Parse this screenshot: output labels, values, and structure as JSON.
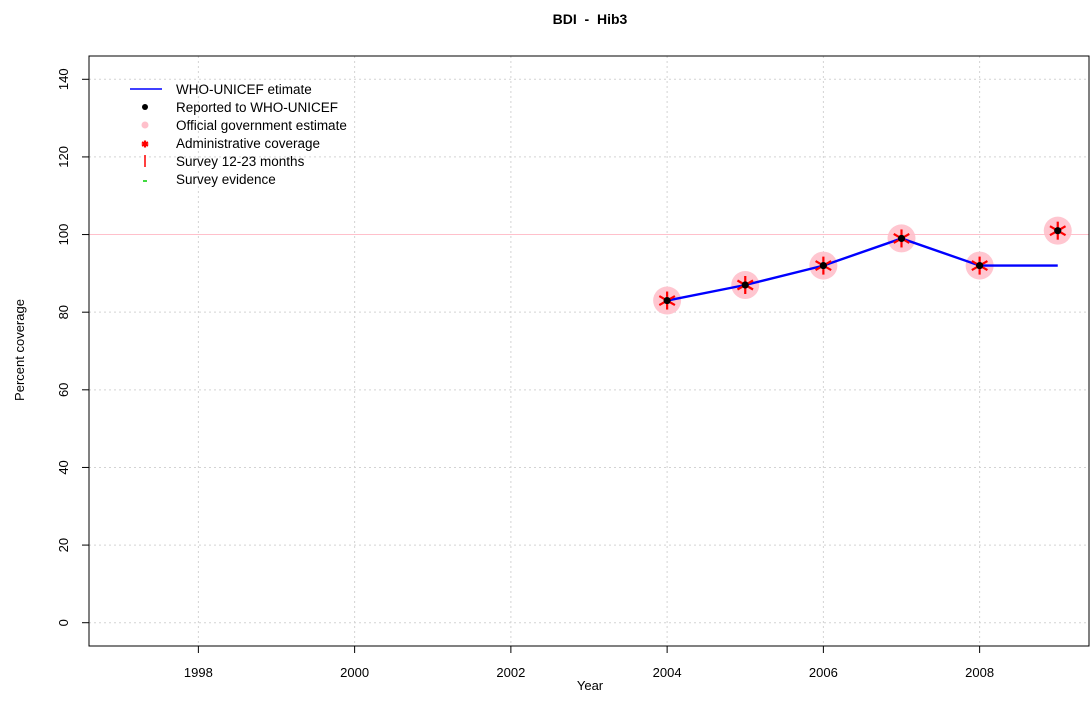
{
  "chart_data": {
    "type": "line",
    "title": "BDI  -  Hib3",
    "xlabel": "Year",
    "ylabel": "Percent coverage",
    "xlim": [
      1996.6,
      2009.4
    ],
    "ylim": [
      -6,
      146
    ],
    "x_ticks": [
      1998,
      2000,
      2002,
      2004,
      2006,
      2008
    ],
    "x_tick_labels": [
      "1998",
      "2000",
      "2002",
      "2004",
      "2006",
      "2008"
    ],
    "y_ticks": [
      0,
      20,
      40,
      60,
      80,
      100,
      120,
      140
    ],
    "y_tick_labels": [
      "0",
      "20",
      "40",
      "60",
      "80",
      "100",
      "120",
      "140"
    ],
    "grid": true,
    "reference_line": {
      "y": 100,
      "color": "#ffc0cb"
    },
    "legend": {
      "position": "top-left",
      "entries": [
        {
          "label": "WHO-UNICEF etimate",
          "symbol": "line",
          "color": "#0000ff"
        },
        {
          "label": "Reported to WHO-UNICEF",
          "symbol": "dot",
          "color": "#000000"
        },
        {
          "label": "Official government estimate",
          "symbol": "circle",
          "color": "#ffc0cb"
        },
        {
          "label": "Administrative coverage",
          "symbol": "star",
          "color": "#ff0000"
        },
        {
          "label": "Survey 12-23 months",
          "symbol": "bar",
          "color": "#ff0000"
        },
        {
          "label": "Survey evidence",
          "symbol": "dash",
          "color": "#00cc00"
        }
      ]
    },
    "series": [
      {
        "name": "WHO-UNICEF etimate",
        "kind": "line",
        "color": "#0000ff",
        "x": [
          2004,
          2005,
          2006,
          2007,
          2008,
          2009
        ],
        "y": [
          83,
          87,
          92,
          99,
          92,
          92
        ]
      },
      {
        "name": "Official government estimate",
        "kind": "circle",
        "color": "#ffc0cb",
        "x": [
          2004,
          2005,
          2006,
          2007,
          2008,
          2009
        ],
        "y": [
          83,
          87,
          92,
          99,
          92,
          101
        ]
      },
      {
        "name": "Administrative coverage",
        "kind": "star",
        "color": "#ff0000",
        "x": [
          2004,
          2005,
          2006,
          2007,
          2008,
          2009
        ],
        "y": [
          83,
          87,
          92,
          99,
          92,
          101
        ]
      },
      {
        "name": "Reported to WHO-UNICEF",
        "kind": "dot",
        "color": "#000000",
        "x": [
          2004,
          2005,
          2006,
          2007,
          2008,
          2009
        ],
        "y": [
          83,
          87,
          92,
          99,
          92,
          101
        ]
      }
    ]
  }
}
